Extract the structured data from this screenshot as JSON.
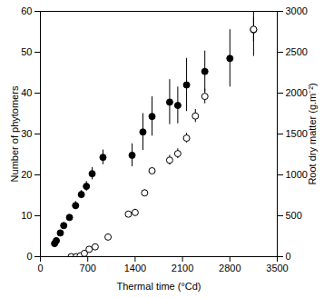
{
  "chart_data": {
    "type": "scatter",
    "xlabel": "Thermal time (°Cd)",
    "ylabel": "Number of phytomers",
    "y2label": "Root dry matter (g.m⁻²)",
    "xlim": [
      0,
      3500
    ],
    "xticks": [
      0,
      700,
      1400,
      2100,
      2800,
      3500
    ],
    "ylim": [
      0,
      60
    ],
    "yticks": [
      0,
      10,
      20,
      30,
      40,
      50,
      60
    ],
    "y2lim": [
      0,
      3000
    ],
    "y2ticks": [
      0,
      500,
      1000,
      1500,
      2000,
      2500,
      3000
    ],
    "series": [
      {
        "color": "#000000",
        "marker": "filled_circle",
        "x": [
          210,
          235,
          295,
          345,
          430,
          520,
          605,
          680,
          765,
          925,
          1355,
          1515,
          1650,
          1910,
          2030,
          2160,
          2430,
          2800,
          3150
        ],
        "values": [
          3.2,
          3.9,
          5.8,
          7.6,
          9.6,
          12.5,
          15.2,
          17.2,
          20.3,
          24.3,
          24.8,
          30.5,
          34.3,
          37.8,
          37.0,
          42.0,
          45.3,
          48.5,
          55.5
        ],
        "errors": [
          null,
          null,
          0.5,
          0.5,
          0.6,
          1.0,
          1.0,
          1.2,
          1.5,
          1.8,
          2.8,
          4.5,
          4.8,
          5.5,
          4.5,
          6.5,
          5.0,
          7.0,
          6.5
        ]
      },
      {
        "color": "#000000",
        "marker": "open_circle",
        "axis": "y2",
        "x": [
          455,
          530,
          590,
          650,
          720,
          810,
          1000,
          1300,
          1400,
          1540,
          1650,
          1910,
          2030,
          2160,
          2290,
          2430,
          3150
        ],
        "values": [
          0,
          0,
          10,
          40,
          90,
          120,
          240,
          520,
          540,
          780,
          1050,
          1180,
          1260,
          1450,
          1720,
          1960,
          2780
        ],
        "errors": [
          null,
          null,
          null,
          null,
          null,
          null,
          30,
          30,
          40,
          40,
          40,
          60,
          60,
          60,
          80,
          90,
          150
        ]
      }
    ]
  }
}
